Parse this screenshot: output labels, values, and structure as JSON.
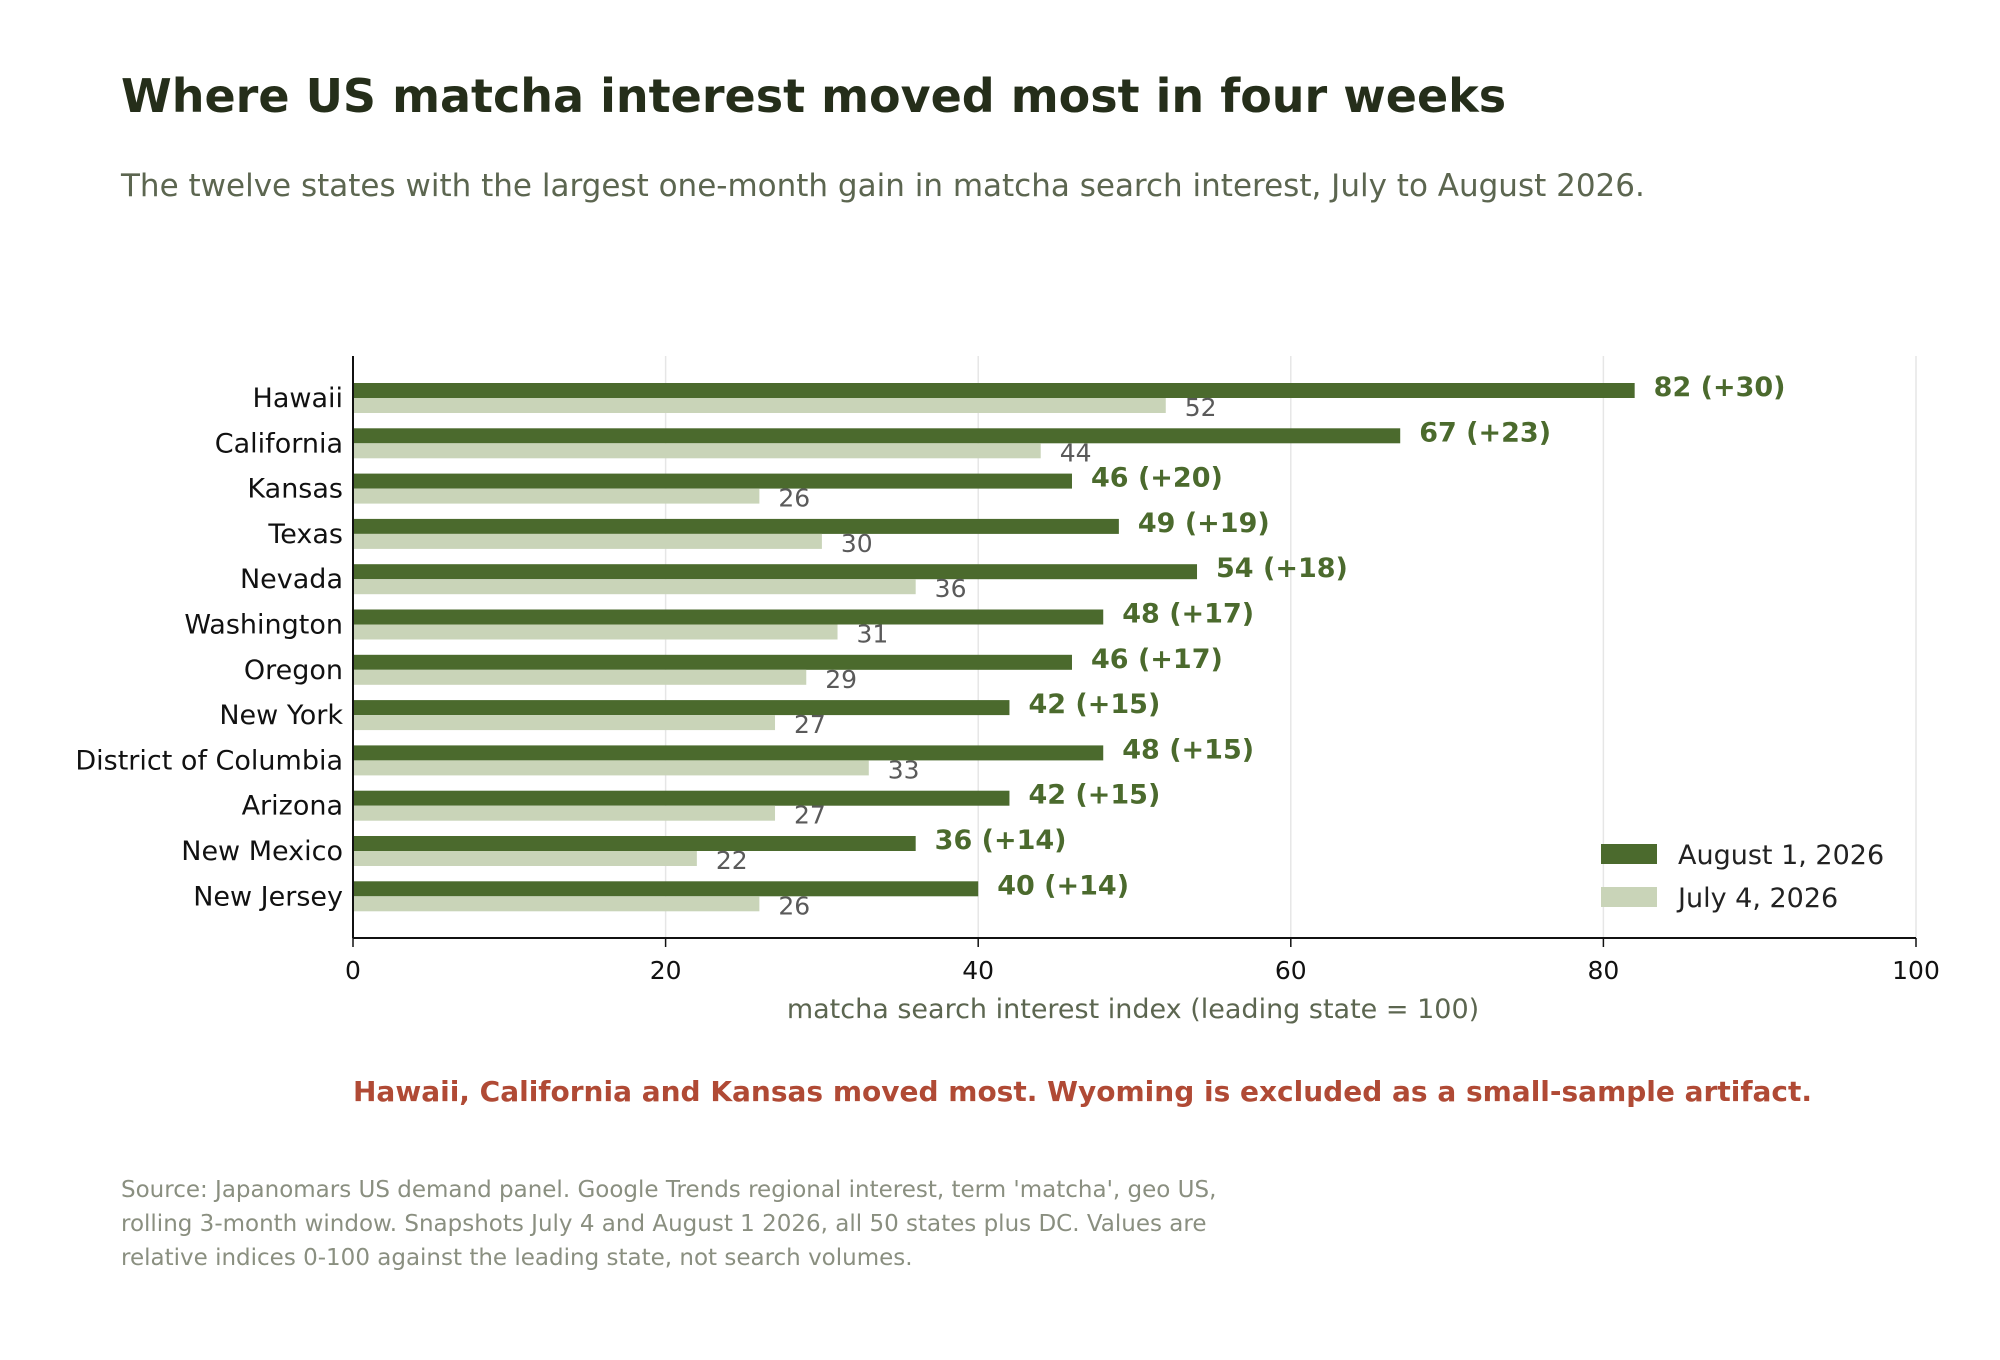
{
  "chart_data": {
    "type": "bar",
    "orientation": "horizontal",
    "title": "Where US matcha interest moved most in four weeks",
    "subtitle": "The twelve states with the largest one-month gain in matcha search interest, July to August 2026.",
    "xlabel": "matcha search interest index (leading state = 100)",
    "ylabel": "",
    "xlim": [
      0,
      100
    ],
    "xticks": [
      0,
      20,
      40,
      60,
      80,
      100
    ],
    "grid": "vertical",
    "legend_position": "bottom-right",
    "categories": [
      "Hawaii",
      "California",
      "Kansas",
      "Texas",
      "Nevada",
      "Washington",
      "Oregon",
      "New York",
      "District of Columbia",
      "Arizona",
      "New Mexico",
      "New Jersey"
    ],
    "series": [
      {
        "name": "August 1, 2026",
        "color": "#4b6a2d",
        "values": [
          82,
          67,
          46,
          49,
          54,
          48,
          46,
          42,
          48,
          42,
          36,
          40
        ],
        "labels": [
          "82  (+30)",
          "67  (+23)",
          "46  (+20)",
          "49  (+19)",
          "54  (+18)",
          "48  (+17)",
          "46  (+17)",
          "42  (+15)",
          "48  (+15)",
          "42  (+15)",
          "36  (+14)",
          "40  (+14)"
        ]
      },
      {
        "name": "July 4, 2026",
        "color": "#c9d4b8",
        "values": [
          52,
          44,
          26,
          30,
          36,
          31,
          29,
          27,
          33,
          27,
          22,
          26
        ]
      }
    ],
    "annotation": "Hawaii, California and Kansas moved most. Wyoming is excluded as a small-sample artifact.",
    "source": [
      "Source: Japanomars US demand panel. Google Trends regional interest, term 'matcha', geo US,",
      "rolling 3-month window. Snapshots July 4 and August 1 2026, all 50 states plus DC. Values are",
      "relative indices 0-100 against the leading state, not search volumes."
    ]
  }
}
